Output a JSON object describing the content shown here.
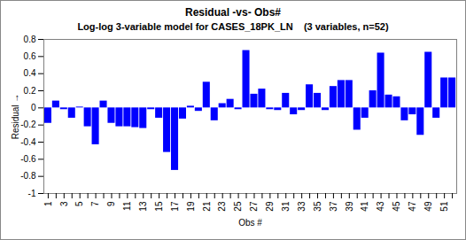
{
  "chart_data": {
    "type": "bar",
    "title": "Residual -vs- Obs#",
    "subtitle": "Log-log 3-variable model for CASES_18PK_LN    (3 variables, n=52)",
    "x_label": "Obs #",
    "y_label": "Residual",
    "categories": [
      "1",
      null,
      "3",
      null,
      "5",
      null,
      "7",
      null,
      "9",
      null,
      "11",
      null,
      "13",
      null,
      "15",
      null,
      "17",
      null,
      "19",
      null,
      "21",
      null,
      "23",
      null,
      "25",
      null,
      "27",
      null,
      "29",
      null,
      "31",
      null,
      "33",
      null,
      "35",
      null,
      "37",
      null,
      "39",
      null,
      "41",
      null,
      "43",
      null,
      "45",
      null,
      "47",
      null,
      "49",
      null,
      "51",
      null
    ],
    "values": [
      -0.18,
      0.08,
      -0.02,
      -0.12,
      0.01,
      -0.22,
      -0.43,
      0.08,
      -0.18,
      -0.22,
      -0.22,
      -0.23,
      -0.24,
      -0.02,
      -0.12,
      -0.52,
      -0.73,
      -0.13,
      0.02,
      -0.04,
      0.3,
      -0.15,
      0.05,
      0.1,
      -0.02,
      0.67,
      0.16,
      0.22,
      -0.02,
      -0.03,
      0.17,
      -0.08,
      -0.03,
      0.27,
      0.17,
      -0.03,
      0.25,
      0.32,
      0.32,
      -0.26,
      -0.12,
      0.2,
      0.64,
      0.15,
      0.13,
      -0.15,
      -0.08,
      -0.32,
      0.65,
      -0.12,
      0.35,
      0.35
    ],
    "color": "#0000ff",
    "ylim": [
      -1,
      0.8
    ],
    "yticks": [
      -1,
      -0.8,
      -0.6,
      -0.4,
      -0.2,
      0,
      0.2,
      0.4,
      0.6,
      0.8
    ],
    "grid": false
  }
}
